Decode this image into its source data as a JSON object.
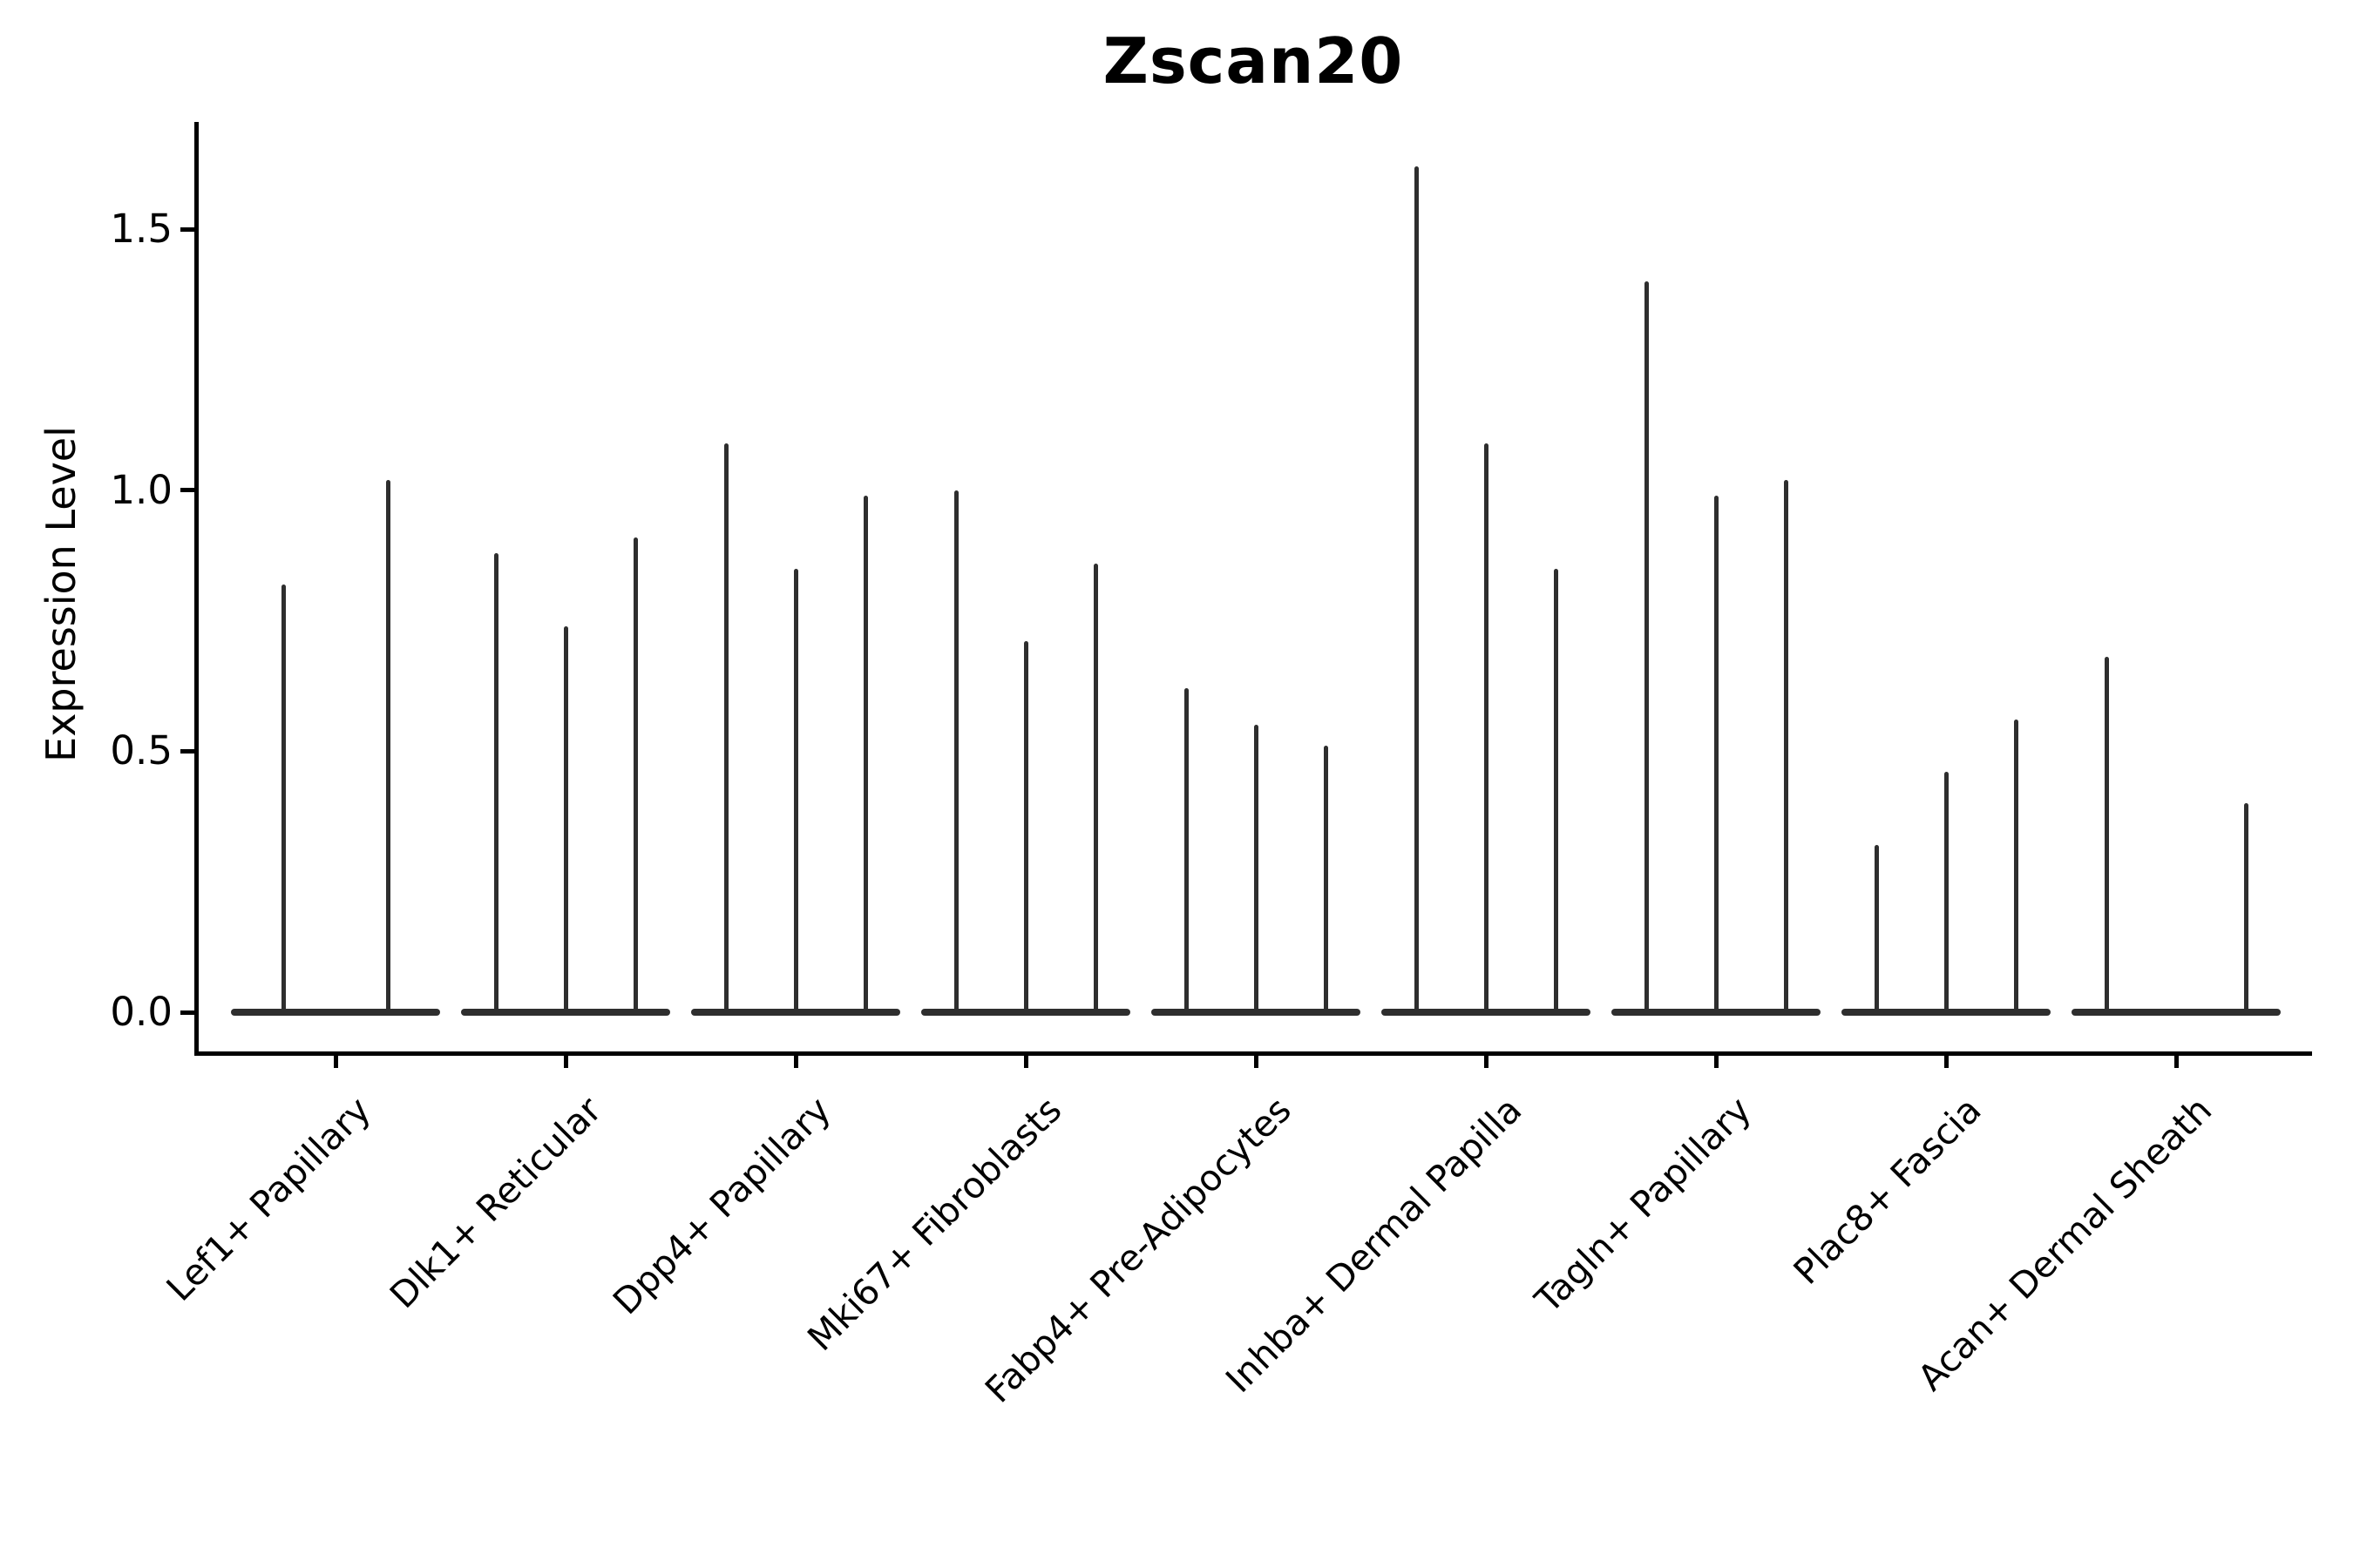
{
  "chart_data": {
    "type": "violin",
    "title": "Zscan20",
    "ylabel": "Expression Level",
    "xlabel": "",
    "yticks": [
      0.0,
      0.5,
      1.0,
      1.5
    ],
    "yticklabels": [
      "0.0",
      "0.5",
      "1.0",
      "1.5"
    ],
    "ylim": [
      -0.08,
      1.7
    ],
    "grid": false,
    "legend": "none",
    "x_tick_rotation": 45,
    "violin_color": "#2e2e2e",
    "axis_color": "#000000",
    "categories": [
      "Lef1+ Papillary",
      "Dlk1+ Reticular",
      "Dpp4+ Papillary",
      "Mki67+ Fibroblasts",
      "Fabp4+ Pre-Adipocytes",
      "Inhba+ Dermal Papilla",
      "Tagln+ Papillary",
      "Plac8+ Fascia",
      "Acan+ Dermal Sheath"
    ],
    "groups": [
      {
        "label": "Lef1+ Papillary",
        "spikes": [
          0.82,
          1.02
        ]
      },
      {
        "label": "Dlk1+ Reticular",
        "spikes": [
          0.88,
          0.74,
          0.91
        ]
      },
      {
        "label": "Dpp4+ Papillary",
        "spikes": [
          1.09,
          0.85,
          0.99
        ]
      },
      {
        "label": "Mki67+ Fibroblasts",
        "spikes": [
          1.0,
          0.71,
          0.86
        ]
      },
      {
        "label": "Fabp4+ Pre-Adipocytes",
        "spikes": [
          0.62,
          0.55,
          0.51
        ]
      },
      {
        "label": "Inhba+ Dermal Papilla",
        "spikes": [
          1.62,
          1.09,
          0.85
        ]
      },
      {
        "label": "Tagln+ Papillary",
        "spikes": [
          1.4,
          0.99,
          1.02
        ]
      },
      {
        "label": "Plac8+ Fascia",
        "spikes": [
          0.32,
          0.46,
          0.56
        ]
      },
      {
        "label": "Acan+ Dermal Sheath",
        "spikes": [
          0.68,
          0.0,
          0.4
        ]
      }
    ]
  }
}
